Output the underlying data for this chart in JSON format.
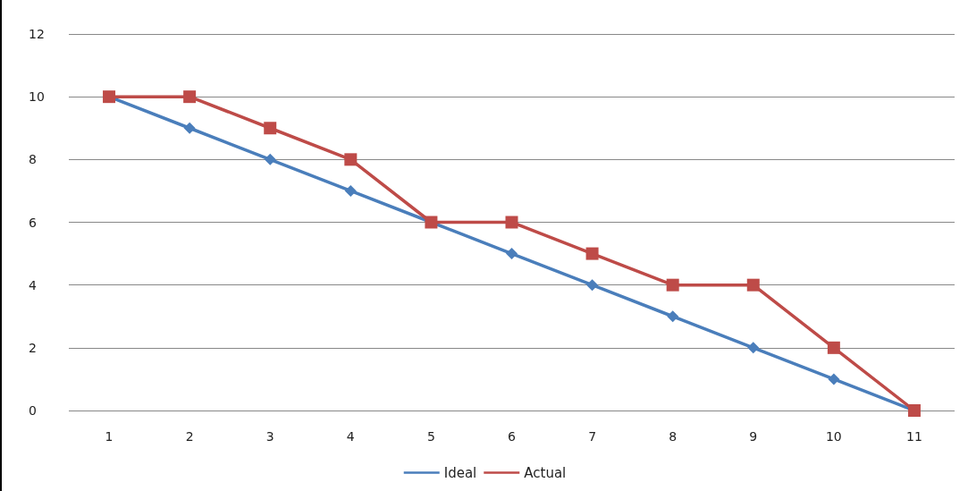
{
  "chart_data": {
    "type": "line",
    "categories": [
      "1",
      "2",
      "3",
      "4",
      "5",
      "6",
      "7",
      "8",
      "9",
      "10",
      "11"
    ],
    "series": [
      {
        "name": "Ideal",
        "color": "#4a7ebb",
        "marker": "diamond",
        "values": [
          10,
          9,
          8,
          7,
          6,
          5,
          4,
          3,
          2,
          1,
          0
        ]
      },
      {
        "name": "Actual",
        "color": "#be4b48",
        "marker": "square",
        "values": [
          10,
          10,
          9,
          8,
          6,
          6,
          5,
          4,
          4,
          2,
          0
        ]
      }
    ],
    "ylim": [
      0,
      12
    ],
    "yticks": [
      0,
      2,
      4,
      6,
      8,
      10,
      12
    ],
    "grid": "y",
    "legend": "bottom",
    "line_style": "solid"
  }
}
